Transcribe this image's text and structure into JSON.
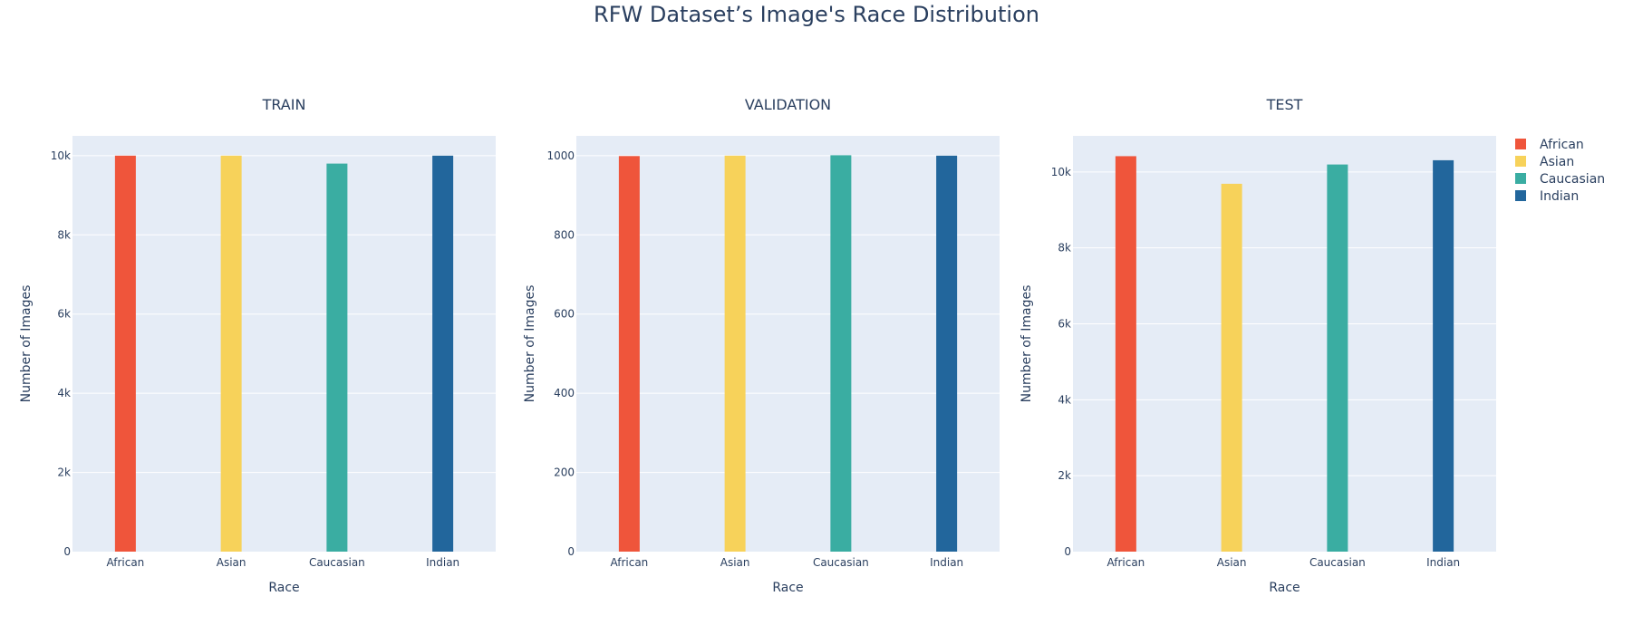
{
  "title": "RFW Dataset’s Image's Race Distribution",
  "legend": {
    "placement": "top-right",
    "items": [
      {
        "label": "African",
        "color": "#ef553b"
      },
      {
        "label": "Asian",
        "color": "#f7d25a"
      },
      {
        "label": "Caucasian",
        "color": "#3aada2"
      },
      {
        "label": "Indian",
        "color": "#22669c"
      }
    ]
  },
  "chart_data": [
    {
      "type": "bar",
      "title": "TRAIN",
      "xlabel": "Race",
      "ylabel": "Number of Images",
      "categories": [
        "African",
        "Asian",
        "Caucasian",
        "Indian"
      ],
      "values": [
        10000,
        10000,
        9800,
        10000
      ],
      "ylim": [
        0,
        10500
      ],
      "yticks": [
        0,
        2000,
        4000,
        6000,
        8000,
        10000
      ],
      "ytick_labels": [
        "0",
        "2k",
        "4k",
        "6k",
        "8k",
        "10k"
      ],
      "grid": true
    },
    {
      "type": "bar",
      "title": "VALIDATION",
      "xlabel": "Race",
      "ylabel": "Number of Images",
      "categories": [
        "African",
        "Asian",
        "Caucasian",
        "Indian"
      ],
      "values": [
        999,
        1000,
        1001,
        1000
      ],
      "ylim": [
        0,
        1050
      ],
      "yticks": [
        0,
        200,
        400,
        600,
        800,
        1000
      ],
      "ytick_labels": [
        "0",
        "200",
        "400",
        "600",
        "800",
        "1000"
      ],
      "grid": true
    },
    {
      "type": "bar",
      "title": "TEST",
      "xlabel": "Race",
      "ylabel": "Number of Images",
      "categories": [
        "African",
        "Asian",
        "Caucasian",
        "Indian"
      ],
      "values": [
        10415,
        9688,
        10196,
        10308
      ],
      "ylim": [
        0,
        10950
      ],
      "yticks": [
        0,
        2000,
        4000,
        6000,
        8000,
        10000
      ],
      "ytick_labels": [
        "0",
        "2k",
        "4k",
        "6k",
        "8k",
        "10k"
      ],
      "grid": true
    }
  ]
}
